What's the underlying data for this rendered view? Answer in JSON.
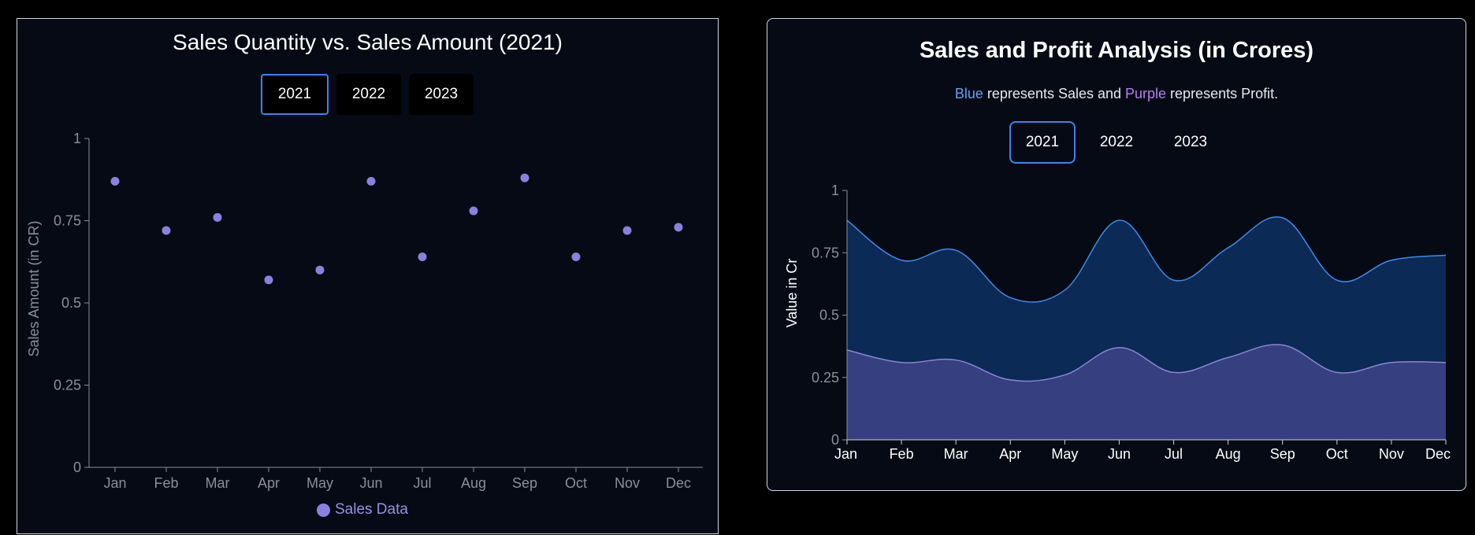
{
  "left_chart": {
    "title": "Sales Quantity vs. Sales Amount (2021)",
    "years": [
      "2021",
      "2022",
      "2023"
    ],
    "active_year": "2021",
    "legend_label": "Sales Data",
    "colors": {
      "point": "#8b80e0",
      "axis": "#8a8f99"
    },
    "chart_data": {
      "type": "scatter",
      "categories": [
        "Jan",
        "Feb",
        "Mar",
        "Apr",
        "May",
        "Jun",
        "Jul",
        "Aug",
        "Sep",
        "Oct",
        "Nov",
        "Dec"
      ],
      "series": [
        {
          "name": "Sales Data",
          "values": [
            0.87,
            0.72,
            0.76,
            0.57,
            0.6,
            0.87,
            0.64,
            0.78,
            0.88,
            0.64,
            0.72,
            0.73
          ]
        }
      ],
      "title": "Sales Quantity vs. Sales Amount (2021)",
      "xlabel": "",
      "ylabel": "Sales Amount (in CR)",
      "ylim": [
        0,
        1
      ],
      "yticks": [
        "0",
        "0.25",
        "0.5",
        "0.75",
        "1"
      ],
      "grid": false,
      "legend": "bottom-center"
    }
  },
  "right_chart": {
    "title": "Sales and Profit Analysis (in Crores)",
    "subtitle": {
      "blue_word": "Blue",
      "mid_text": " represents Sales and ",
      "purple_word": "Purple",
      "end_text": " represents Profit."
    },
    "years": [
      "2021",
      "2022",
      "2023"
    ],
    "active_year": "2021",
    "colors": {
      "sales_fill": "#0b2a55",
      "sales_line": "#3f8be8",
      "profit_fill": "#363f80",
      "profit_line": "#8a86d6"
    },
    "chart_data": {
      "type": "area",
      "categories": [
        "Jan",
        "Feb",
        "Mar",
        "Apr",
        "May",
        "Jun",
        "Jul",
        "Aug",
        "Sep",
        "Oct",
        "Nov",
        "Dec"
      ],
      "series": [
        {
          "values": [
            0.88,
            0.72,
            0.76,
            0.57,
            0.6,
            0.88,
            0.64,
            0.77,
            0.89,
            0.64,
            0.72,
            0.74
          ]
        },
        {
          "values": [
            0.36,
            0.31,
            0.32,
            0.24,
            0.26,
            0.37,
            0.27,
            0.33,
            0.38,
            0.27,
            0.31,
            0.31
          ]
        }
      ],
      "title": "Sales and Profit Analysis (in Crores)",
      "xlabel": "",
      "ylabel": "Value in Cr",
      "ylim": [
        0,
        1
      ],
      "yticks": [
        "0",
        "0.25",
        "0.5",
        "0.75",
        "1"
      ],
      "grid": false
    }
  }
}
